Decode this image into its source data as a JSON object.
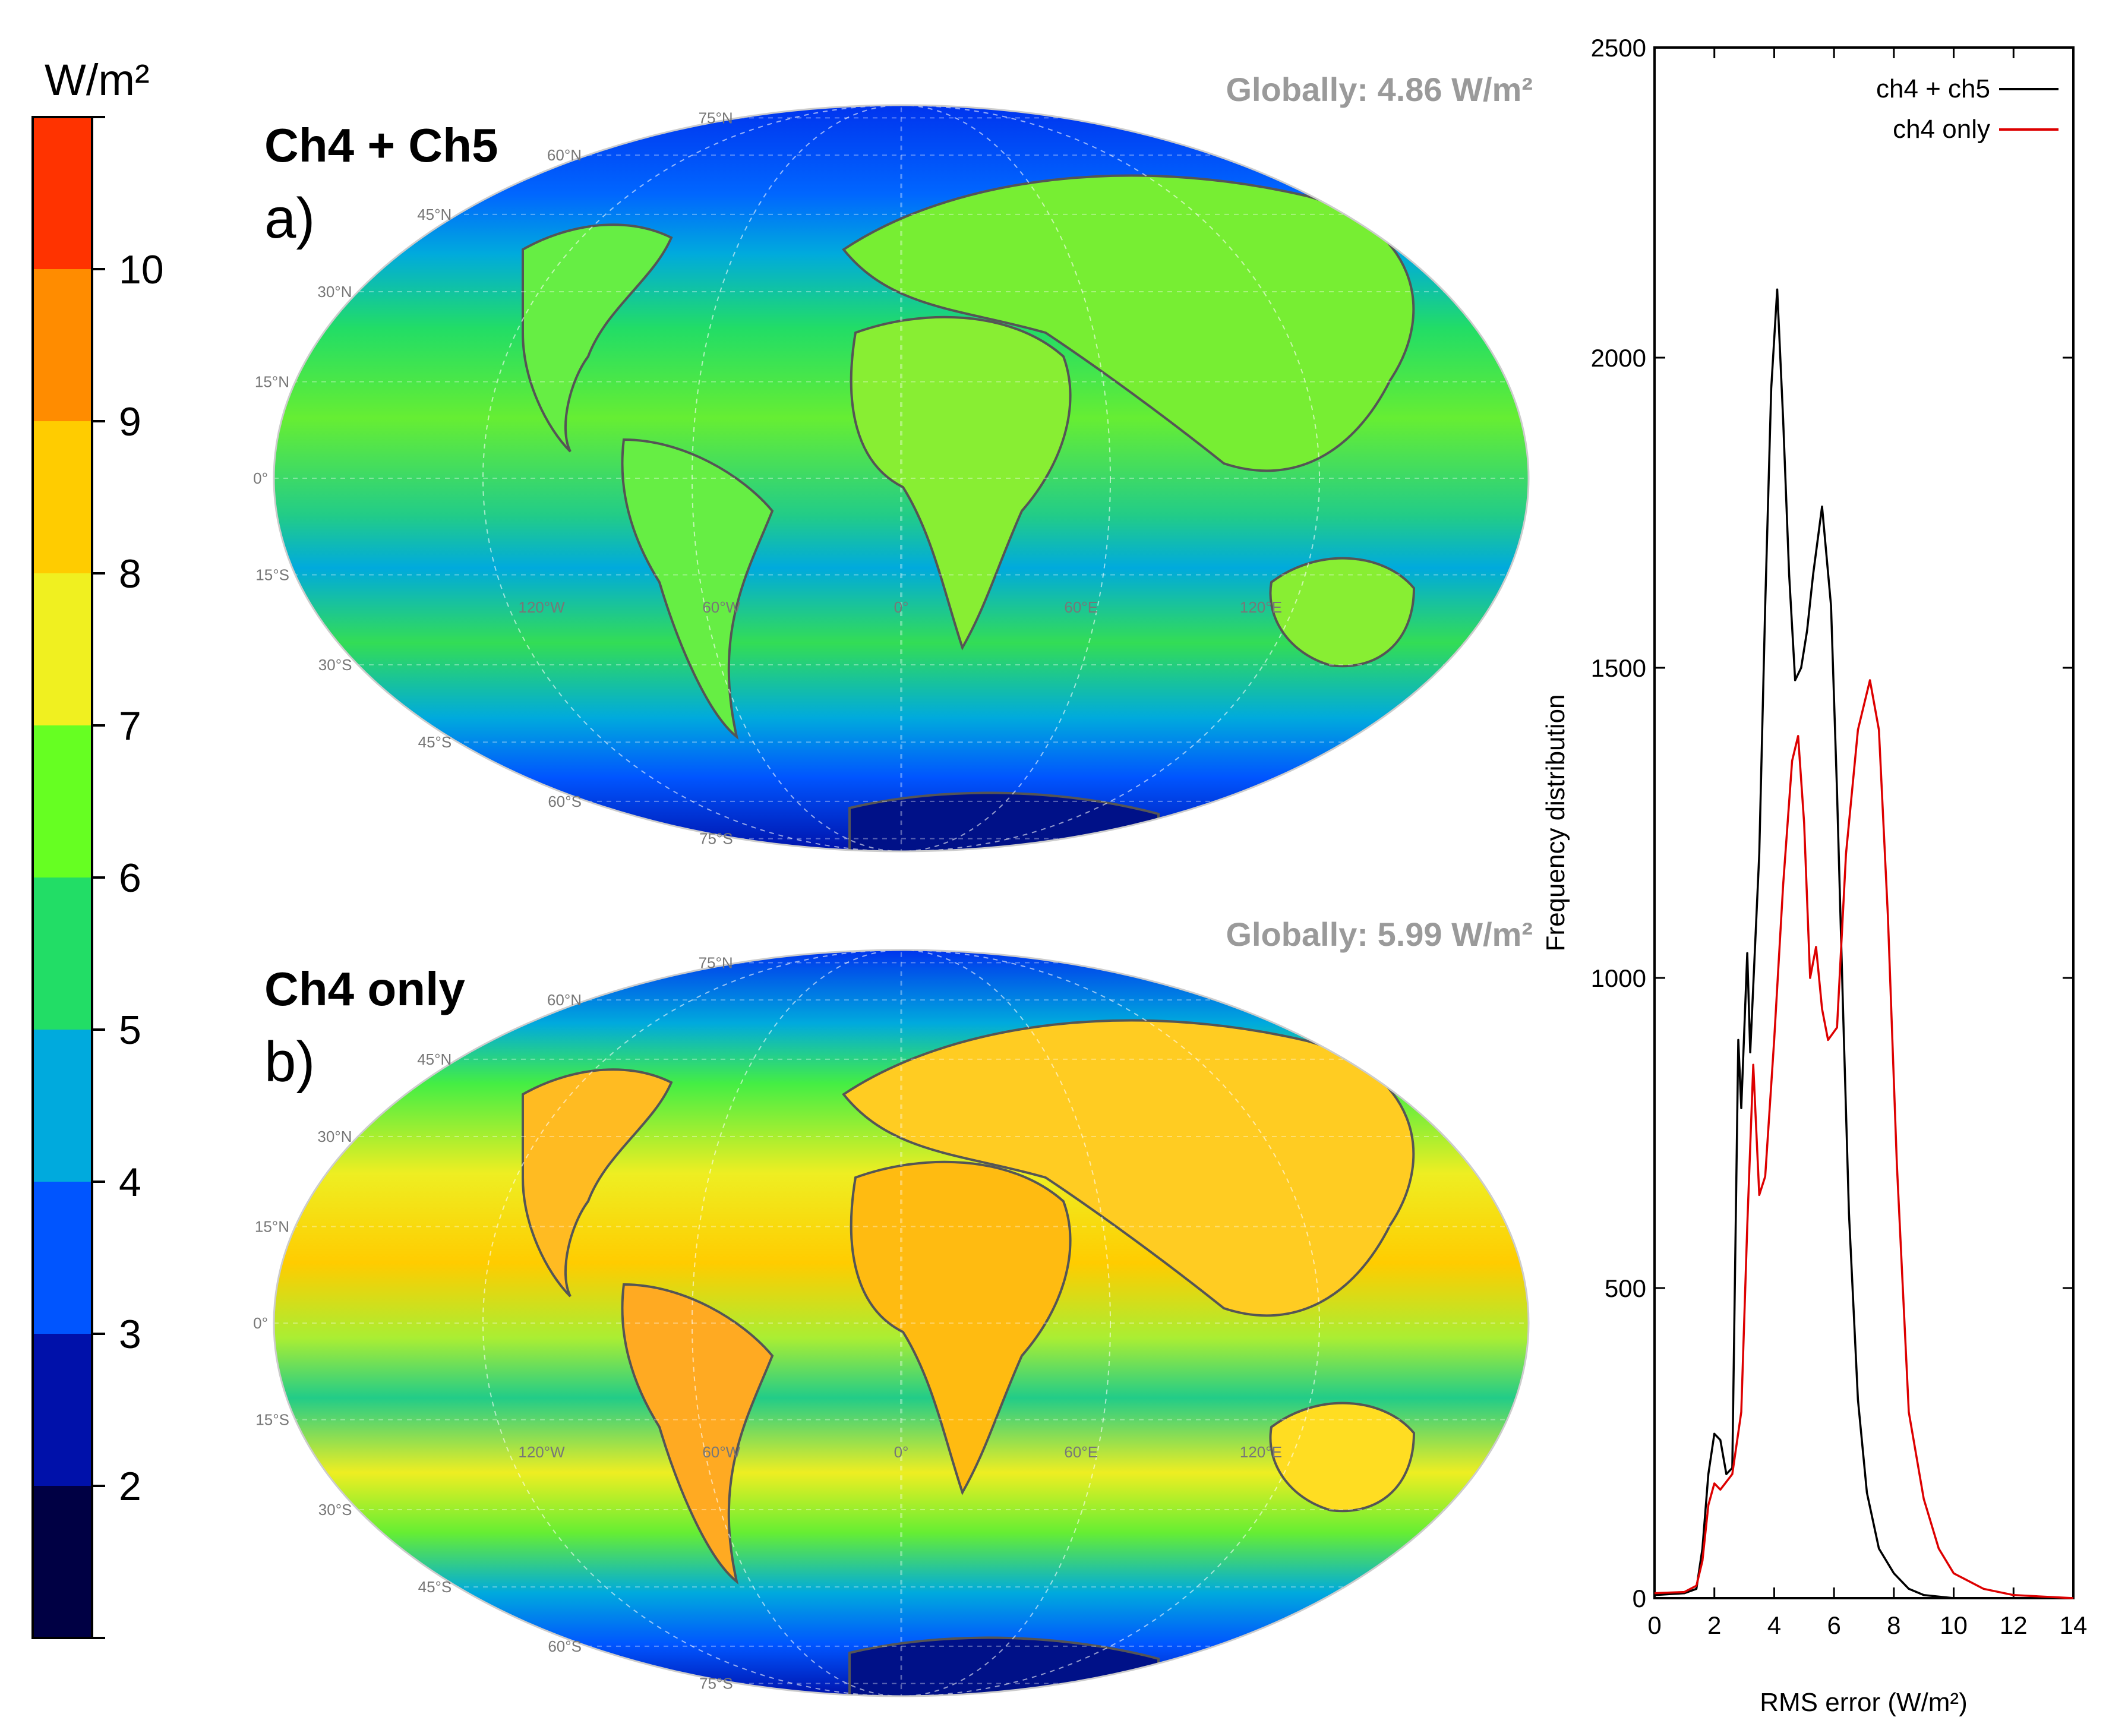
{
  "colorbar": {
    "unit": "W/m²",
    "labels": [
      "10",
      "9",
      "8",
      "7",
      "6",
      "5",
      "4",
      "3",
      "2"
    ],
    "colors": [
      "#ff3300",
      "#ff8c00",
      "#ffcc00",
      "#f0f020",
      "#66ff22",
      "#22dd66",
      "#00aadd",
      "#0055ff",
      "#0011aa",
      "#000044"
    ]
  },
  "maps": [
    {
      "title": "Ch4 + Ch5",
      "panel": "a)",
      "global_label": "Globally: 4.86 W/m²",
      "lat_labels": [
        "75°N",
        "60°N",
        "45°N",
        "30°N",
        "15°N",
        "0°",
        "15°S",
        "30°S",
        "45°S",
        "60°S",
        "75°S"
      ],
      "lon_labels": [
        "120°W",
        "60°W",
        "0°",
        "60°E",
        "120°E"
      ]
    },
    {
      "title": "Ch4 only",
      "panel": "b)",
      "global_label": "Globally: 5.99 W/m²",
      "lat_labels": [
        "75°N",
        "60°N",
        "45°N",
        "30°N",
        "15°N",
        "0°",
        "15°S",
        "30°S",
        "45°S",
        "60°S",
        "75°S"
      ],
      "lon_labels": [
        "120°W",
        "60°W",
        "0°",
        "60°E",
        "120°E"
      ]
    }
  ],
  "chart_data": {
    "type": "line",
    "title": "",
    "xlabel": "RMS error (W/m²)",
    "ylabel": "Frequency distribution",
    "xlim": [
      0,
      14
    ],
    "ylim": [
      0,
      2500
    ],
    "xticks": [
      "0",
      "2",
      "4",
      "6",
      "8",
      "10",
      "12",
      "14"
    ],
    "yticks": [
      "0",
      "500",
      "1000",
      "1500",
      "2000",
      "2500"
    ],
    "legend_position": "top-right",
    "series": [
      {
        "name": "ch4 + ch5",
        "color": "#000000",
        "points": [
          [
            0,
            5
          ],
          [
            1,
            8
          ],
          [
            1.4,
            15
          ],
          [
            1.6,
            80
          ],
          [
            1.8,
            200
          ],
          [
            2.0,
            265
          ],
          [
            2.2,
            255
          ],
          [
            2.4,
            200
          ],
          [
            2.6,
            210
          ],
          [
            2.8,
            900
          ],
          [
            2.9,
            790
          ],
          [
            3.1,
            1040
          ],
          [
            3.2,
            880
          ],
          [
            3.5,
            1200
          ],
          [
            3.7,
            1600
          ],
          [
            3.9,
            1950
          ],
          [
            4.1,
            2110
          ],
          [
            4.3,
            1900
          ],
          [
            4.5,
            1650
          ],
          [
            4.7,
            1480
          ],
          [
            4.9,
            1500
          ],
          [
            5.1,
            1560
          ],
          [
            5.3,
            1650
          ],
          [
            5.6,
            1760
          ],
          [
            5.9,
            1600
          ],
          [
            6.1,
            1300
          ],
          [
            6.3,
            950
          ],
          [
            6.5,
            620
          ],
          [
            6.8,
            320
          ],
          [
            7.1,
            170
          ],
          [
            7.5,
            80
          ],
          [
            8.0,
            40
          ],
          [
            8.5,
            15
          ],
          [
            9.0,
            5
          ],
          [
            10,
            0
          ],
          [
            14,
            0
          ]
        ]
      },
      {
        "name": "ch4 only",
        "color": "#dd0000",
        "points": [
          [
            0,
            8
          ],
          [
            1,
            10
          ],
          [
            1.4,
            20
          ],
          [
            1.6,
            60
          ],
          [
            1.8,
            150
          ],
          [
            2.0,
            185
          ],
          [
            2.2,
            175
          ],
          [
            2.6,
            200
          ],
          [
            2.9,
            300
          ],
          [
            3.1,
            600
          ],
          [
            3.3,
            860
          ],
          [
            3.5,
            650
          ],
          [
            3.7,
            680
          ],
          [
            4.0,
            900
          ],
          [
            4.3,
            1150
          ],
          [
            4.6,
            1350
          ],
          [
            4.8,
            1390
          ],
          [
            5.0,
            1250
          ],
          [
            5.2,
            1000
          ],
          [
            5.4,
            1050
          ],
          [
            5.6,
            950
          ],
          [
            5.8,
            900
          ],
          [
            6.1,
            920
          ],
          [
            6.4,
            1200
          ],
          [
            6.8,
            1400
          ],
          [
            7.2,
            1480
          ],
          [
            7.5,
            1400
          ],
          [
            7.8,
            1100
          ],
          [
            8.1,
            700
          ],
          [
            8.5,
            300
          ],
          [
            9.0,
            160
          ],
          [
            9.5,
            80
          ],
          [
            10,
            40
          ],
          [
            11,
            15
          ],
          [
            12,
            5
          ],
          [
            14,
            0
          ]
        ]
      }
    ]
  }
}
